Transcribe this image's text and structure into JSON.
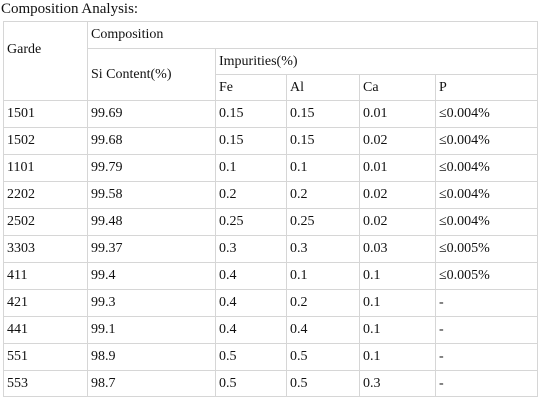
{
  "title": "Composition Analysis:",
  "headers": {
    "grade": "Garde",
    "composition": "Composition",
    "si_content": "Si Content(%)",
    "impurities": "Impurities(%)",
    "fe": "Fe",
    "al": "Al",
    "ca": "Ca",
    "p": "P"
  },
  "rows": [
    {
      "grade": "1501",
      "si": "99.69",
      "fe": "0.15",
      "al": "0.15",
      "ca": "0.01",
      "p": "≤0.004%"
    },
    {
      "grade": "1502",
      "si": "99.68",
      "fe": "0.15",
      "al": "0.15",
      "ca": "0.02",
      "p": "≤0.004%"
    },
    {
      "grade": "1101",
      "si": "99.79",
      "fe": "0.1",
      "al": "0.1",
      "ca": "0.01",
      "p": "≤0.004%"
    },
    {
      "grade": "2202",
      "si": "99.58",
      "fe": "0.2",
      "al": "0.2",
      "ca": "0.02",
      "p": "≤0.004%"
    },
    {
      "grade": "2502",
      "si": "99.48",
      "fe": "0.25",
      "al": "0.25",
      "ca": "0.02",
      "p": "≤0.004%"
    },
    {
      "grade": "3303",
      "si": "99.37",
      "fe": "0.3",
      "al": "0.3",
      "ca": "0.03",
      "p": "≤0.005%"
    },
    {
      "grade": "411",
      "si": "99.4",
      "fe": "0.4",
      "al": "0.1",
      "ca": "0.1",
      "p": "≤0.005%"
    },
    {
      "grade": "421",
      "si": "99.3",
      "fe": "0.4",
      "al": "0.2",
      "ca": "0.1",
      "p": "-"
    },
    {
      "grade": "441",
      "si": "99.1",
      "fe": "0.4",
      "al": "0.4",
      "ca": "0.1",
      "p": "-"
    },
    {
      "grade": "551",
      "si": "98.9",
      "fe": "0.5",
      "al": "0.5",
      "ca": "0.1",
      "p": "-"
    },
    {
      "grade": "553",
      "si": "98.7",
      "fe": "0.5",
      "al": "0.5",
      "ca": "0.3",
      "p": "-"
    }
  ]
}
